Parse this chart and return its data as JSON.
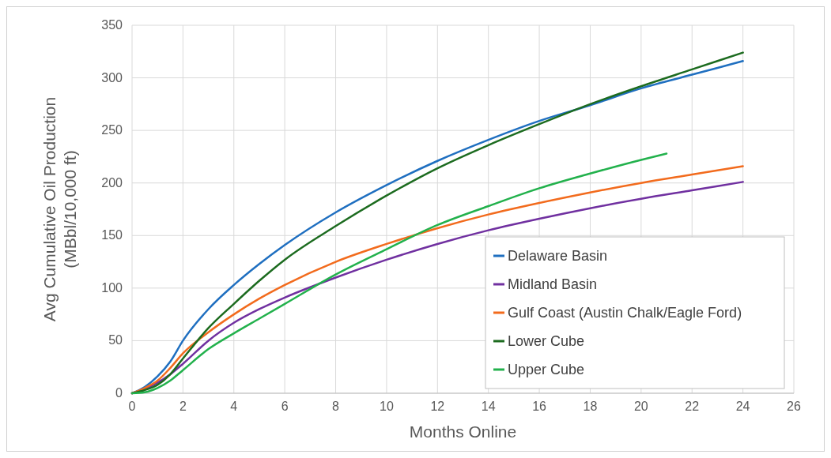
{
  "chart_data": {
    "type": "line",
    "xlabel": "Months Online",
    "ylabel": "Avg Cumulative Oil Production\n(MBbl/10,000 ft)",
    "xlim": [
      0,
      26
    ],
    "xticks": [
      0,
      2,
      4,
      6,
      8,
      10,
      12,
      14,
      16,
      18,
      20,
      22,
      24,
      26
    ],
    "ylim": [
      0,
      350
    ],
    "yticks": [
      0,
      50,
      100,
      150,
      200,
      250,
      300,
      350
    ],
    "grid": true,
    "legend": "bottom right",
    "marker": "none",
    "line_style": "solid",
    "series": [
      {
        "name": "Delaware Basin",
        "color": "#1f6fc0",
        "x": [
          0,
          0.5,
          1,
          1.5,
          2,
          3,
          4,
          5,
          6,
          8,
          10,
          12,
          14,
          16,
          18,
          20,
          22,
          24
        ],
        "values": [
          0,
          6,
          16,
          30,
          50,
          80,
          103,
          123,
          141,
          172,
          198,
          221,
          241,
          259,
          274,
          290,
          303,
          316
        ]
      },
      {
        "name": "Midland Basin",
        "color": "#7030a0",
        "x": [
          0,
          0.5,
          1,
          1.5,
          2,
          3,
          4,
          5,
          6,
          8,
          10,
          12,
          14,
          16,
          18,
          20,
          22,
          24
        ],
        "values": [
          0,
          4,
          10,
          18,
          28,
          50,
          67,
          80,
          91,
          110,
          127,
          142,
          155,
          166,
          176,
          185,
          193,
          201
        ]
      },
      {
        "name": "Gulf Coast (Austin Chalk/Eagle Ford)",
        "color": "#f26b1d",
        "x": [
          0,
          0.5,
          1,
          1.5,
          2,
          3,
          4,
          5,
          6,
          8,
          10,
          12,
          14,
          16,
          18,
          20,
          22,
          24
        ],
        "values": [
          0,
          5,
          12,
          24,
          38,
          58,
          75,
          90,
          103,
          125,
          142,
          157,
          170,
          181,
          191,
          200,
          208,
          216
        ]
      },
      {
        "name": "Lower Cube",
        "color": "#1c6b1f",
        "x": [
          0,
          0.5,
          1,
          1.5,
          2,
          3,
          4,
          5,
          6,
          8,
          10,
          12,
          14,
          16,
          18,
          20,
          22,
          24
        ],
        "values": [
          0,
          3,
          8,
          18,
          33,
          62,
          85,
          107,
          127,
          159,
          188,
          214,
          236,
          256,
          275,
          292,
          308,
          324
        ]
      },
      {
        "name": "Upper Cube",
        "color": "#22b14c",
        "x": [
          0,
          0.5,
          1,
          1.5,
          2,
          3,
          4,
          5,
          6,
          8,
          10,
          12,
          14,
          16,
          18,
          20,
          21
        ],
        "values": [
          0,
          1,
          5,
          12,
          22,
          42,
          57,
          71,
          85,
          113,
          137,
          160,
          178,
          195,
          209,
          222,
          228
        ]
      }
    ]
  }
}
